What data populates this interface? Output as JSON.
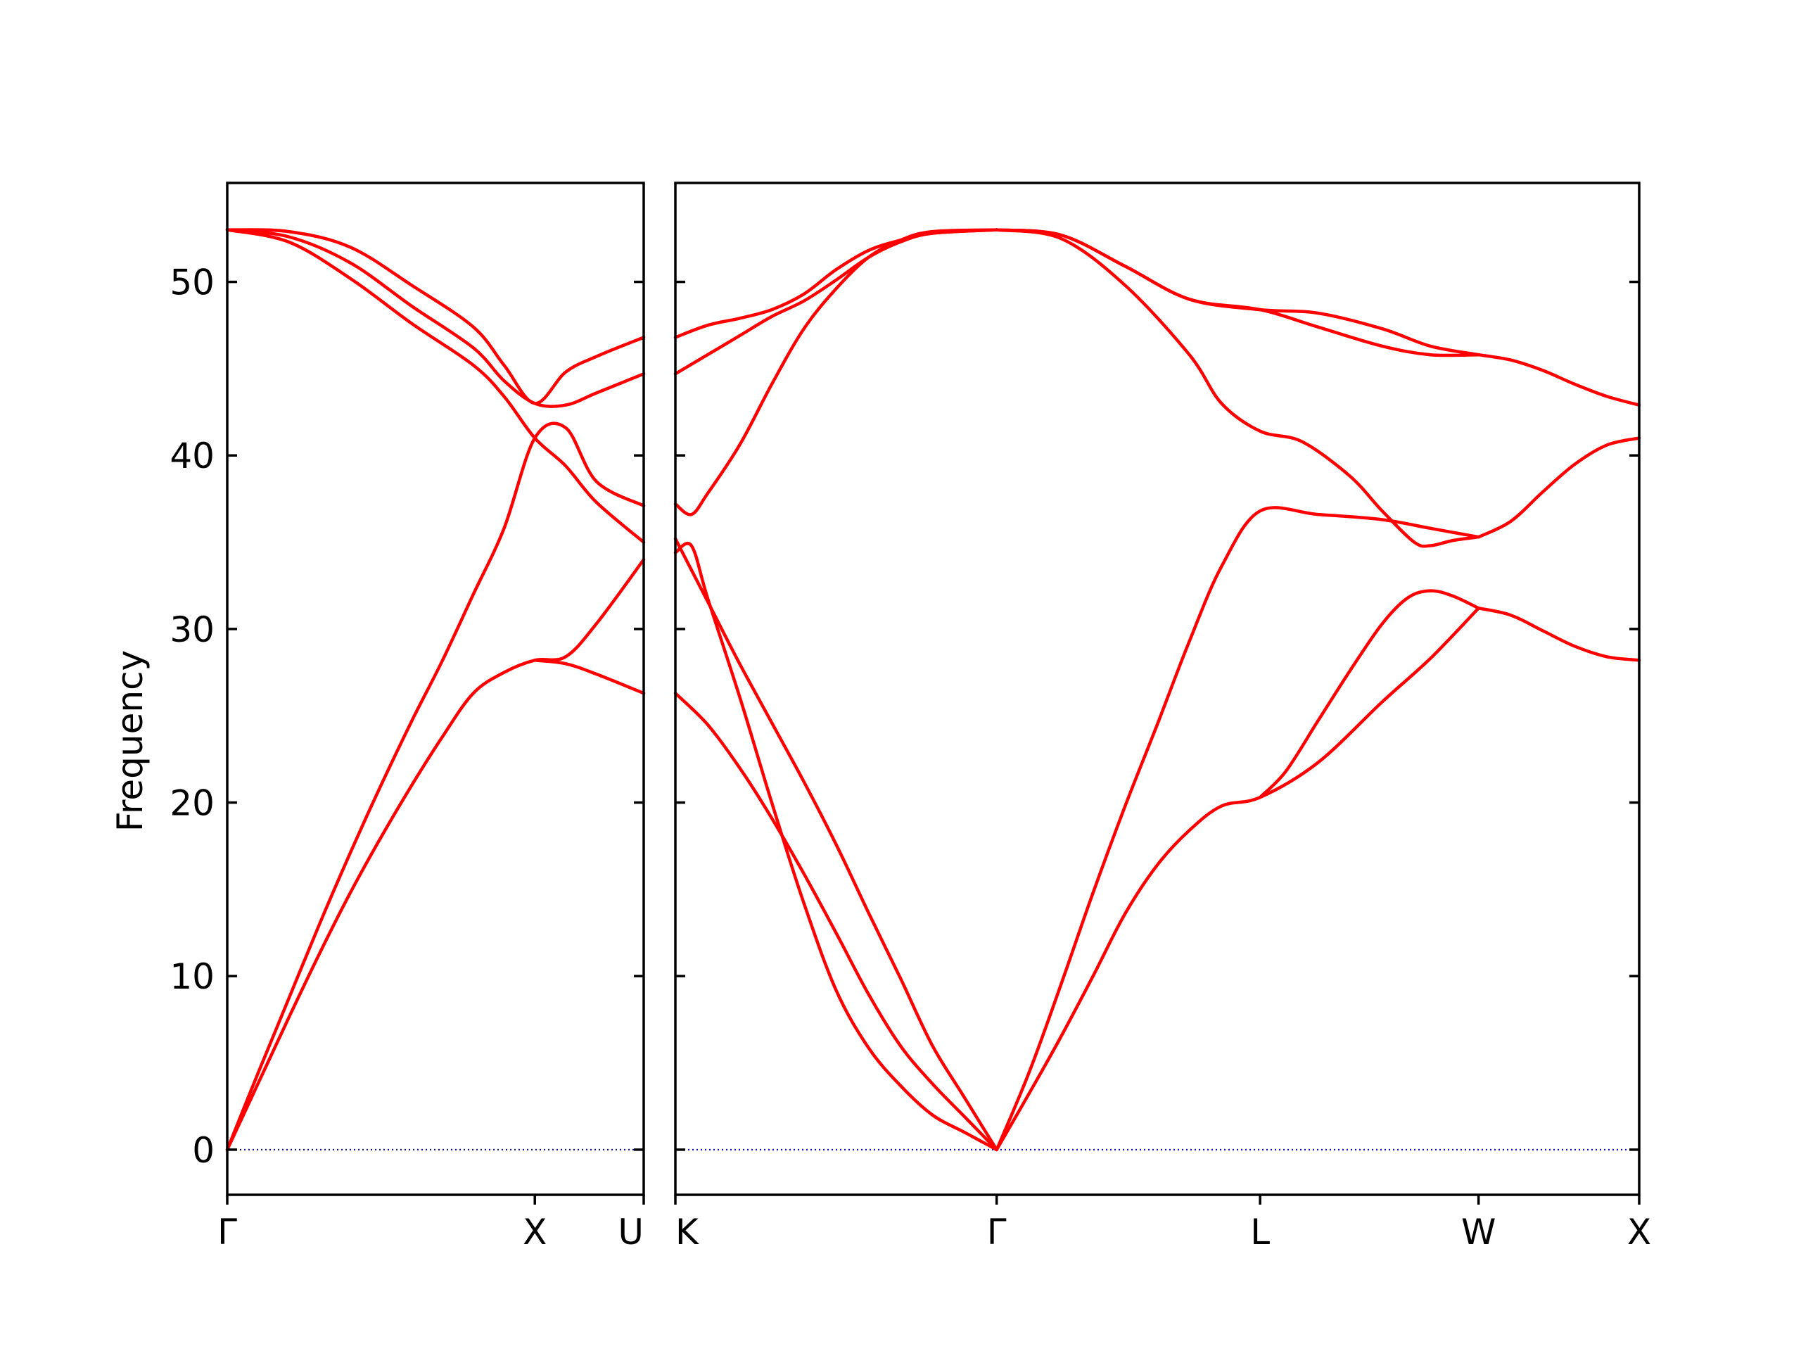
{
  "chart_data": {
    "type": "line",
    "title": "",
    "ylabel": "Frequency",
    "ylim": [
      -2.6,
      55.7
    ],
    "yticks": [
      0,
      10,
      20,
      30,
      40,
      50
    ],
    "grid": false,
    "colors": {
      "band": "#ff0000",
      "zero_line": "#0000aa",
      "axes": "#000000"
    },
    "panels": [
      {
        "name": "left",
        "xlim": [
          0,
          1.354
        ],
        "xticks": [
          {
            "pos": 0,
            "label": "Γ",
            "align": "middle"
          },
          {
            "pos": 1.0,
            "label": "X",
            "align": "middle"
          },
          {
            "pos": 1.354,
            "label": "U",
            "align": "end"
          }
        ],
        "series": [
          {
            "values": [
              [
                0,
                0
              ],
              [
                0.1,
                4.4
              ],
              [
                0.2,
                8.7
              ],
              [
                0.3,
                13.0
              ],
              [
                0.4,
                17.1
              ],
              [
                0.5,
                21.0
              ],
              [
                0.6,
                24.7
              ],
              [
                0.7,
                28.2
              ],
              [
                0.8,
                32.0
              ],
              [
                0.9,
                35.8
              ],
              [
                1.0,
                41.0
              ],
              [
                1.1,
                41.6
              ],
              [
                1.2,
                38.5
              ],
              [
                1.354,
                37.1
              ]
            ]
          },
          {
            "values": [
              [
                0,
                0
              ],
              [
                0.1,
                3.8
              ],
              [
                0.2,
                7.6
              ],
              [
                0.3,
                11.3
              ],
              [
                0.4,
                14.8
              ],
              [
                0.5,
                18.0
              ],
              [
                0.6,
                21.0
              ],
              [
                0.7,
                23.8
              ],
              [
                0.8,
                26.3
              ],
              [
                0.9,
                27.5
              ],
              [
                1.0,
                28.2
              ],
              [
                1.1,
                28.4
              ],
              [
                1.2,
                30.3
              ],
              [
                1.354,
                34.0
              ]
            ]
          },
          {
            "values": [
              [
                0,
                53.0
              ],
              [
                0.2,
                52.3
              ],
              [
                0.4,
                50.2
              ],
              [
                0.6,
                47.6
              ],
              [
                0.8,
                45.2
              ],
              [
                0.9,
                43.4
              ],
              [
                1.0,
                41.0
              ],
              [
                1.1,
                39.4
              ],
              [
                1.2,
                37.3
              ],
              [
                1.354,
                35.0
              ]
            ]
          },
          {
            "values": [
              [
                0,
                53.0
              ],
              [
                0.2,
                52.6
              ],
              [
                0.4,
                51.1
              ],
              [
                0.6,
                48.6
              ],
              [
                0.8,
                46.2
              ],
              [
                0.9,
                44.3
              ],
              [
                1.0,
                43.0
              ],
              [
                1.1,
                42.9
              ],
              [
                1.2,
                43.6
              ],
              [
                1.354,
                44.7
              ]
            ]
          },
          {
            "values": [
              [
                0,
                53.0
              ],
              [
                0.2,
                52.9
              ],
              [
                0.4,
                52.0
              ],
              [
                0.6,
                49.8
              ],
              [
                0.8,
                47.4
              ],
              [
                0.9,
                45.2
              ],
              [
                1.0,
                43.0
              ],
              [
                1.1,
                44.8
              ],
              [
                1.2,
                45.7
              ],
              [
                1.354,
                46.8
              ]
            ]
          },
          {
            "values": [
              [
                1.0,
                28.2
              ],
              [
                1.1,
                28.0
              ],
              [
                1.2,
                27.4
              ],
              [
                1.354,
                26.3
              ]
            ]
          }
        ]
      },
      {
        "name": "right",
        "xlim": [
          0,
          3.0
        ],
        "xticks": [
          {
            "pos": 0,
            "label": "K",
            "align": "start"
          },
          {
            "pos": 1.0,
            "label": "Γ",
            "align": "middle"
          },
          {
            "pos": 1.82,
            "label": "L",
            "align": "middle"
          },
          {
            "pos": 2.5,
            "label": "W",
            "align": "middle"
          },
          {
            "pos": 3.0,
            "label": "X",
            "align": "middle"
          }
        ],
        "series": [
          {
            "values": [
              [
                0,
                26.3
              ],
              [
                0.1,
                24.5
              ],
              [
                0.2,
                22.0
              ],
              [
                0.3,
                19.1
              ],
              [
                0.4,
                15.9
              ],
              [
                0.5,
                12.5
              ],
              [
                0.6,
                9.0
              ],
              [
                0.7,
                6.0
              ],
              [
                0.8,
                3.8
              ],
              [
                0.9,
                1.9
              ],
              [
                1.0,
                0
              ]
            ]
          },
          {
            "values": [
              [
                0,
                34.4
              ],
              [
                0.05,
                34.8
              ],
              [
                0.1,
                31.8
              ],
              [
                0.2,
                26.1
              ],
              [
                0.3,
                20.0
              ],
              [
                0.4,
                14.2
              ],
              [
                0.5,
                9.2
              ],
              [
                0.6,
                5.9
              ],
              [
                0.7,
                3.7
              ],
              [
                0.8,
                2.0
              ],
              [
                0.9,
                1.0
              ],
              [
                1.0,
                0
              ]
            ]
          },
          {
            "values": [
              [
                0,
                35.2
              ],
              [
                0.1,
                31.6
              ],
              [
                0.2,
                28.0
              ],
              [
                0.3,
                24.6
              ],
              [
                0.4,
                21.2
              ],
              [
                0.5,
                17.6
              ],
              [
                0.6,
                13.7
              ],
              [
                0.7,
                9.9
              ],
              [
                0.8,
                6.0
              ],
              [
                0.9,
                3.0
              ],
              [
                1.0,
                0
              ]
            ]
          },
          {
            "values": [
              [
                0,
                37.2
              ],
              [
                0.05,
                36.6
              ],
              [
                0.1,
                37.8
              ],
              [
                0.2,
                40.6
              ],
              [
                0.3,
                44.1
              ],
              [
                0.4,
                47.3
              ],
              [
                0.5,
                49.6
              ],
              [
                0.6,
                51.4
              ],
              [
                0.7,
                52.4
              ],
              [
                0.8,
                52.9
              ],
              [
                1.0,
                53.0
              ]
            ]
          },
          {
            "values": [
              [
                0,
                44.7
              ],
              [
                0.1,
                45.8
              ],
              [
                0.2,
                46.9
              ],
              [
                0.3,
                48.0
              ],
              [
                0.4,
                48.9
              ],
              [
                0.5,
                50.1
              ],
              [
                0.6,
                51.4
              ],
              [
                0.7,
                52.3
              ],
              [
                0.8,
                52.8
              ],
              [
                1.0,
                53.0
              ]
            ]
          },
          {
            "values": [
              [
                0,
                46.8
              ],
              [
                0.1,
                47.5
              ],
              [
                0.2,
                47.9
              ],
              [
                0.3,
                48.4
              ],
              [
                0.4,
                49.3
              ],
              [
                0.5,
                50.7
              ],
              [
                0.6,
                51.8
              ],
              [
                0.7,
                52.4
              ],
              [
                0.8,
                52.8
              ],
              [
                1.0,
                53.0
              ]
            ]
          },
          {
            "values": [
              [
                1.0,
                0
              ],
              [
                1.1,
                4.4
              ],
              [
                1.2,
                9.5
              ],
              [
                1.3,
                14.8
              ],
              [
                1.4,
                19.8
              ],
              [
                1.5,
                24.5
              ],
              [
                1.6,
                29.3
              ],
              [
                1.7,
                33.6
              ],
              [
                1.82,
                36.8
              ],
              [
                2.0,
                36.6
              ],
              [
                2.2,
                36.3
              ],
              [
                2.35,
                35.8
              ],
              [
                2.5,
                35.3
              ]
            ]
          },
          {
            "values": [
              [
                1.0,
                0
              ],
              [
                1.1,
                3.2
              ],
              [
                1.2,
                6.5
              ],
              [
                1.3,
                10.0
              ],
              [
                1.4,
                13.6
              ],
              [
                1.5,
                16.4
              ],
              [
                1.6,
                18.4
              ],
              [
                1.7,
                19.8
              ],
              [
                1.82,
                20.3
              ],
              [
                2.0,
                22.3
              ],
              [
                2.2,
                25.8
              ],
              [
                2.35,
                28.3
              ],
              [
                2.5,
                31.2
              ]
            ]
          },
          {
            "values": [
              [
                1.82,
                20.3
              ],
              [
                1.9,
                21.8
              ],
              [
                2.0,
                24.7
              ],
              [
                2.1,
                27.6
              ],
              [
                2.2,
                30.3
              ],
              [
                2.28,
                31.8
              ],
              [
                2.35,
                32.2
              ],
              [
                2.42,
                31.9
              ],
              [
                2.5,
                31.2
              ]
            ]
          },
          {
            "values": [
              [
                1.0,
                53.0
              ],
              [
                1.2,
                52.5
              ],
              [
                1.4,
                49.8
              ],
              [
                1.6,
                45.8
              ],
              [
                1.7,
                43.0
              ],
              [
                1.82,
                41.4
              ],
              [
                1.95,
                40.8
              ],
              [
                2.1,
                38.8
              ],
              [
                2.2,
                36.8
              ],
              [
                2.3,
                35.0
              ],
              [
                2.35,
                34.8
              ],
              [
                2.42,
                35.1
              ],
              [
                2.5,
                35.3
              ]
            ]
          },
          {
            "values": [
              [
                1.0,
                53.0
              ],
              [
                1.2,
                52.7
              ],
              [
                1.4,
                50.9
              ],
              [
                1.6,
                49.0
              ],
              [
                1.82,
                48.4
              ],
              [
                2.0,
                47.4
              ],
              [
                2.2,
                46.3
              ],
              [
                2.35,
                45.8
              ],
              [
                2.5,
                45.8
              ]
            ]
          },
          {
            "values": [
              [
                1.0,
                53.0
              ],
              [
                1.2,
                52.7
              ],
              [
                1.4,
                50.9
              ],
              [
                1.6,
                49.0
              ],
              [
                1.82,
                48.4
              ],
              [
                2.0,
                48.2
              ],
              [
                2.2,
                47.3
              ],
              [
                2.35,
                46.3
              ],
              [
                2.5,
                45.8
              ]
            ]
          },
          {
            "values": [
              [
                2.5,
                45.8
              ],
              [
                2.6,
                45.5
              ],
              [
                2.7,
                44.9
              ],
              [
                2.8,
                44.1
              ],
              [
                2.9,
                43.4
              ],
              [
                3.0,
                42.9
              ]
            ]
          },
          {
            "values": [
              [
                2.5,
                35.3
              ],
              [
                2.6,
                36.2
              ],
              [
                2.7,
                37.9
              ],
              [
                2.8,
                39.5
              ],
              [
                2.9,
                40.6
              ],
              [
                3.0,
                41.0
              ]
            ]
          },
          {
            "values": [
              [
                2.5,
                31.2
              ],
              [
                2.6,
                30.8
              ],
              [
                2.7,
                29.9
              ],
              [
                2.8,
                29.0
              ],
              [
                2.9,
                28.4
              ],
              [
                3.0,
                28.2
              ]
            ]
          }
        ]
      }
    ]
  }
}
